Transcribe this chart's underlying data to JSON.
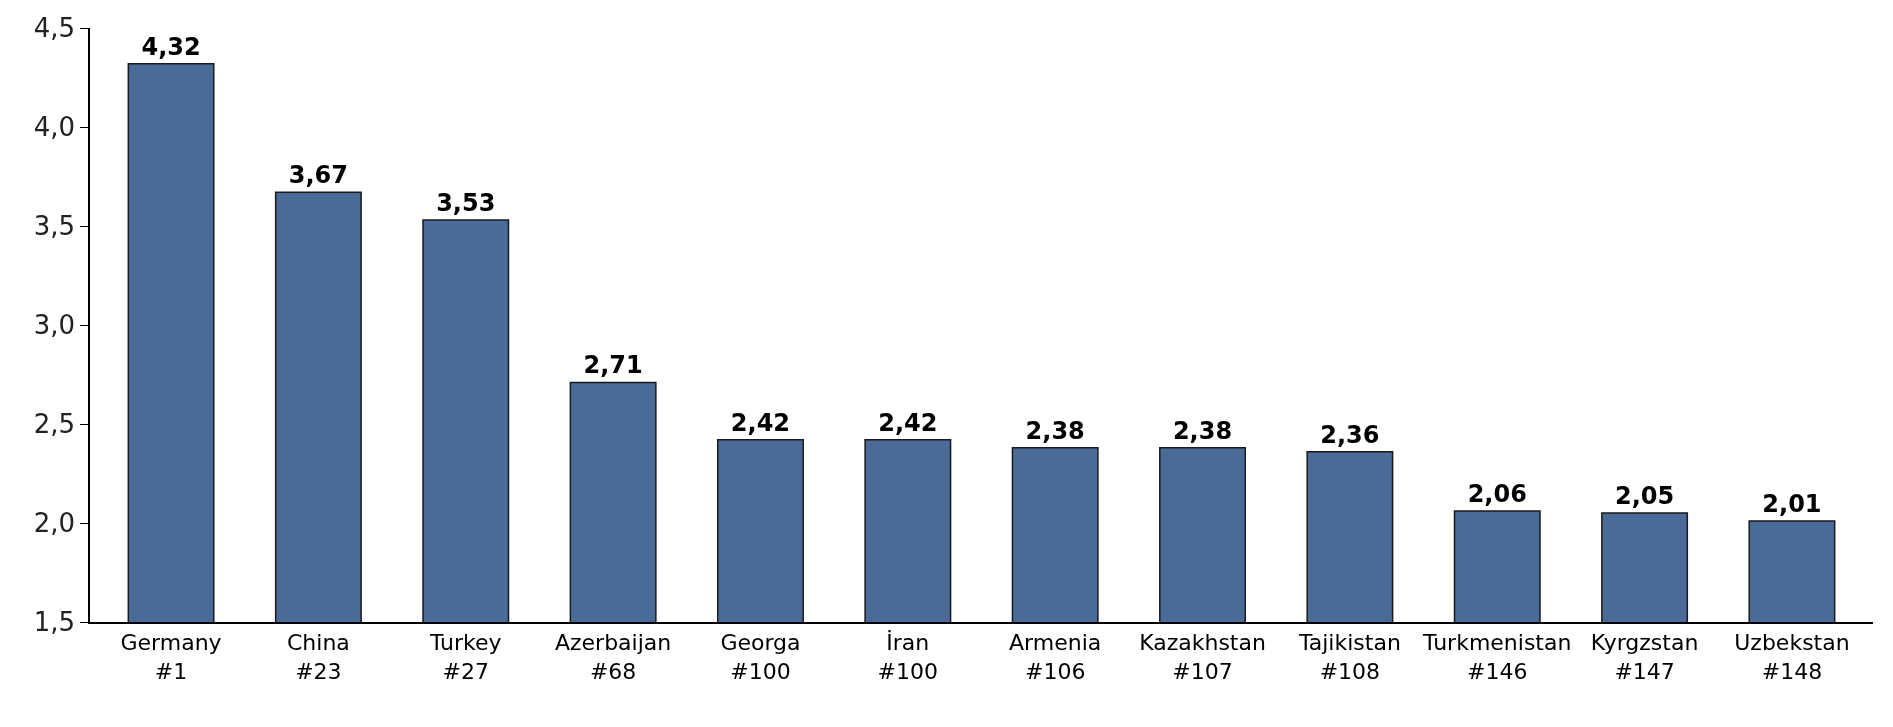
{
  "chart_data": {
    "type": "bar",
    "categories": [
      "Germany\n#1",
      "China\n#23",
      "Turkey\n#27",
      "Azerbaijan\n#68",
      "Georga\n#100",
      "İran\n#100",
      "Armenia\n#106",
      "Kazakhstan\n#107",
      "Tajikistan\n#108",
      "Turkmenistan\n#146",
      "Kyrgzstan\n#147",
      "Uzbekstan\n#148"
    ],
    "values": [
      4.32,
      3.67,
      3.53,
      2.71,
      2.42,
      2.42,
      2.38,
      2.38,
      2.36,
      2.06,
      2.05,
      2.01
    ],
    "value_labels": [
      "4,32",
      "3,67",
      "3,53",
      "2,71",
      "2,42",
      "2,42",
      "2,38",
      "2,38",
      "2,36",
      "2,06",
      "2,05",
      "2,01"
    ],
    "color": "#4a6a98",
    "ylim": [
      1.5,
      4.5
    ],
    "yticks": [
      {
        "value": 1.5,
        "label": "1,5"
      },
      {
        "value": 2.0,
        "label": "2,0"
      },
      {
        "value": 2.5,
        "label": "2,5"
      },
      {
        "value": 3.0,
        "label": "3,0"
      },
      {
        "value": 3.5,
        "label": "3,5"
      },
      {
        "value": 4.0,
        "label": "4,0"
      },
      {
        "value": 4.5,
        "label": "4,5"
      }
    ],
    "grid": false
  }
}
